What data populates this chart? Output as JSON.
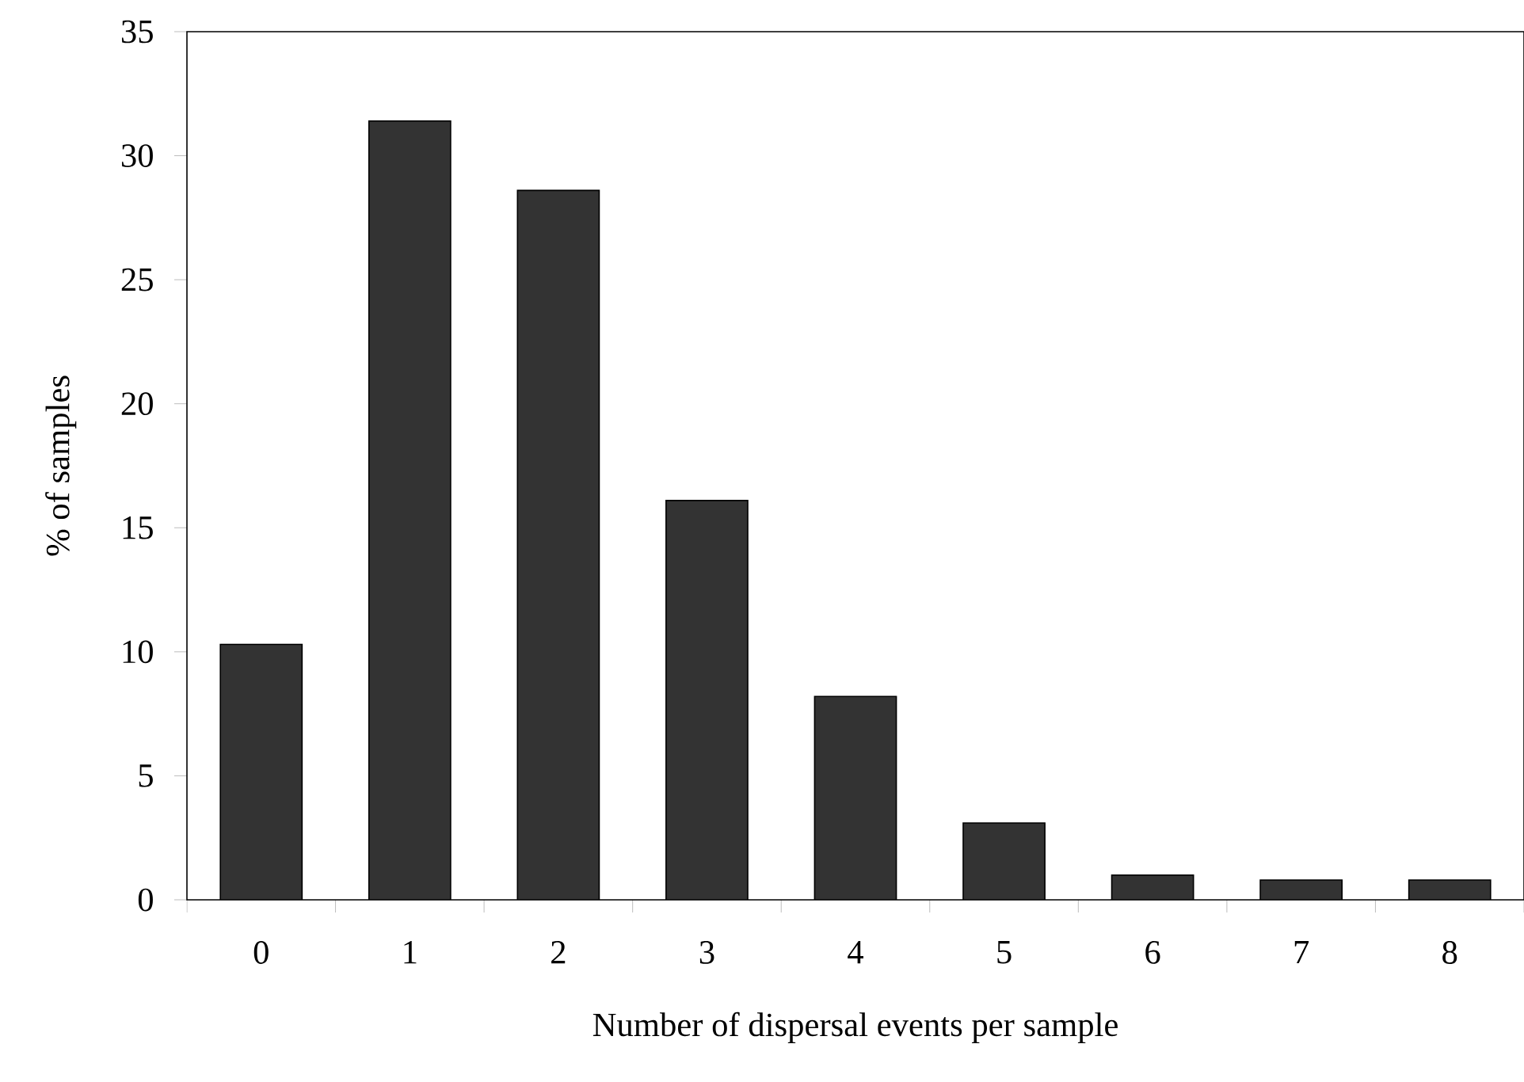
{
  "chart_data": {
    "type": "bar",
    "xlabel": "Number of dispersal events per sample",
    "ylabel": "% of samples",
    "categories": [
      "0",
      "1",
      "2",
      "3",
      "4",
      "5",
      "6",
      "7",
      "8"
    ],
    "values": [
      10.3,
      31.4,
      28.6,
      16.1,
      8.2,
      3.1,
      1.0,
      0.8,
      0.8
    ],
    "color": "#333333",
    "ylim": [
      0,
      35
    ],
    "yticks": [
      0,
      5,
      10,
      15,
      20,
      25,
      30,
      35
    ],
    "grid": false
  }
}
